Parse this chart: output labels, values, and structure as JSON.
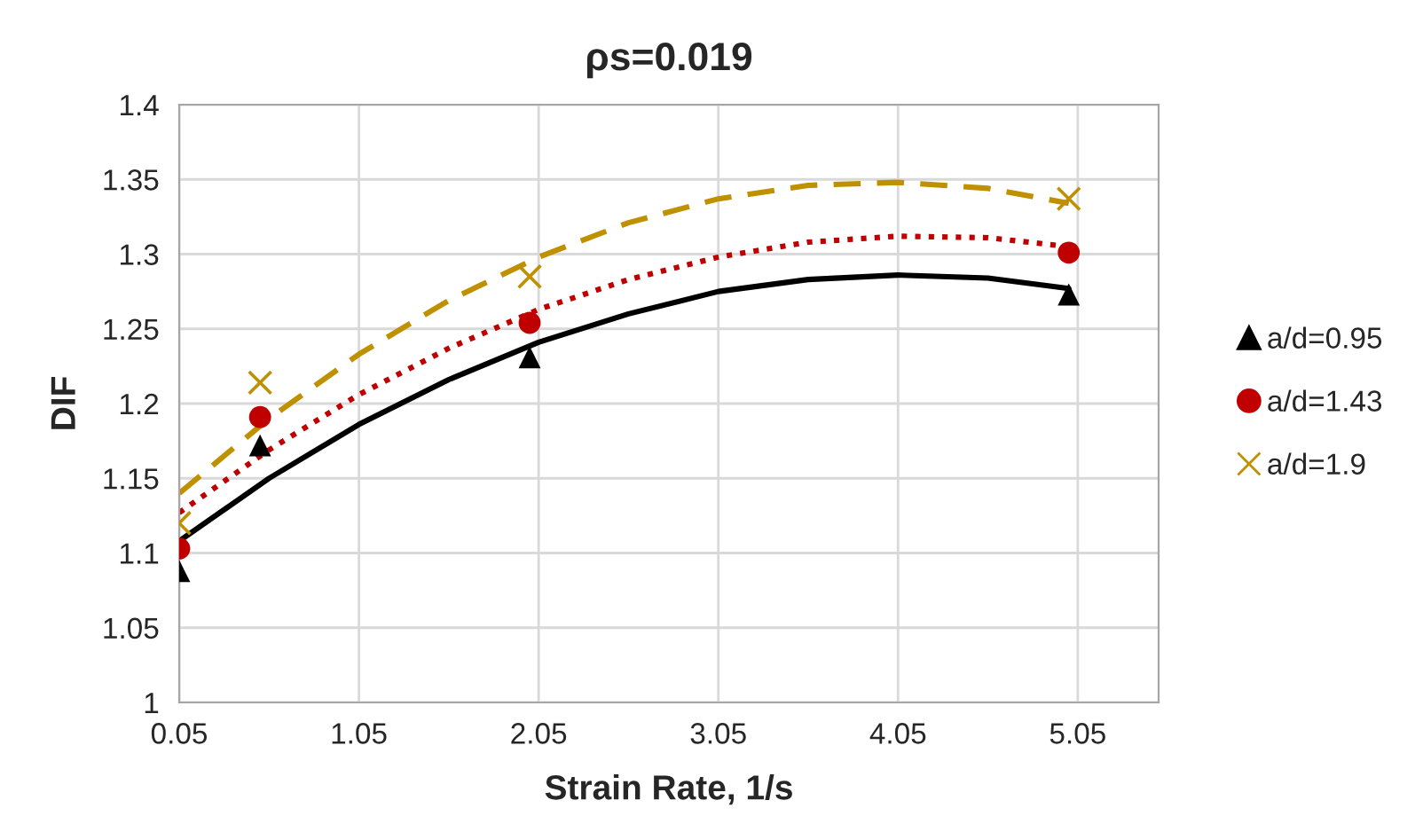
{
  "chart_data": {
    "type": "scatter",
    "title": "ρs=0.019",
    "xlabel": "Strain Rate, 1/s",
    "ylabel": "DIF",
    "xlim": [
      0.05,
      5.5
    ],
    "xticks": [
      {
        "value": 0.05,
        "label": "0.05"
      },
      {
        "value": 1.05,
        "label": "1.05"
      },
      {
        "value": 2.05,
        "label": "2.05"
      },
      {
        "value": 3.05,
        "label": "3.05"
      },
      {
        "value": 4.05,
        "label": "4.05"
      },
      {
        "value": 5.05,
        "label": "5.05"
      }
    ],
    "ylim": [
      1,
      1.4
    ],
    "yticks": [
      1,
      1.05,
      1.1,
      1.15,
      1.2,
      1.25,
      1.3,
      1.35,
      1.4
    ],
    "grid": true,
    "legend": "right",
    "series": [
      {
        "name": "a/d=0.95",
        "color": "#000000",
        "marker": "triangle",
        "x": [
          0.05,
          0.5,
          2,
          5
        ],
        "values": [
          1.088,
          1.172,
          1.231,
          1.273
        ]
      },
      {
        "name": "a/d=1.43",
        "color": "#c00000",
        "marker": "circle",
        "x": [
          0.05,
          0.5,
          2,
          5
        ],
        "values": [
          1.103,
          1.191,
          1.254,
          1.301
        ]
      },
      {
        "name": "a/d=1.9",
        "color": "#bf9000",
        "marker": "cross",
        "x": [
          0.05,
          0.5,
          2,
          5
        ],
        "values": [
          1.12,
          1.214,
          1.285,
          1.337
        ]
      },
      {
        "type": "line",
        "color": "#000000",
        "line_style": "solid",
        "x": [
          0.05,
          0.55,
          1.05,
          1.55,
          2.05,
          2.55,
          3.05,
          3.55,
          4.05,
          4.55,
          5.0
        ],
        "values": [
          1.108,
          1.15,
          1.186,
          1.216,
          1.241,
          1.26,
          1.275,
          1.283,
          1.286,
          1.284,
          1.277
        ]
      },
      {
        "type": "line",
        "color": "#c00000",
        "line_style": "dotted",
        "x": [
          0.05,
          0.55,
          1.05,
          1.55,
          2.05,
          2.55,
          3.05,
          3.55,
          4.05,
          4.55,
          5.0
        ],
        "values": [
          1.127,
          1.169,
          1.206,
          1.237,
          1.263,
          1.283,
          1.298,
          1.308,
          1.312,
          1.311,
          1.305
        ]
      },
      {
        "type": "line",
        "color": "#bf9000",
        "line_style": "dashed",
        "x": [
          0.05,
          0.55,
          1.05,
          1.55,
          2.05,
          2.55,
          3.05,
          3.55,
          4.05,
          4.55,
          5.0
        ],
        "values": [
          1.14,
          1.19,
          1.233,
          1.269,
          1.298,
          1.321,
          1.337,
          1.346,
          1.348,
          1.344,
          1.334
        ]
      }
    ]
  }
}
